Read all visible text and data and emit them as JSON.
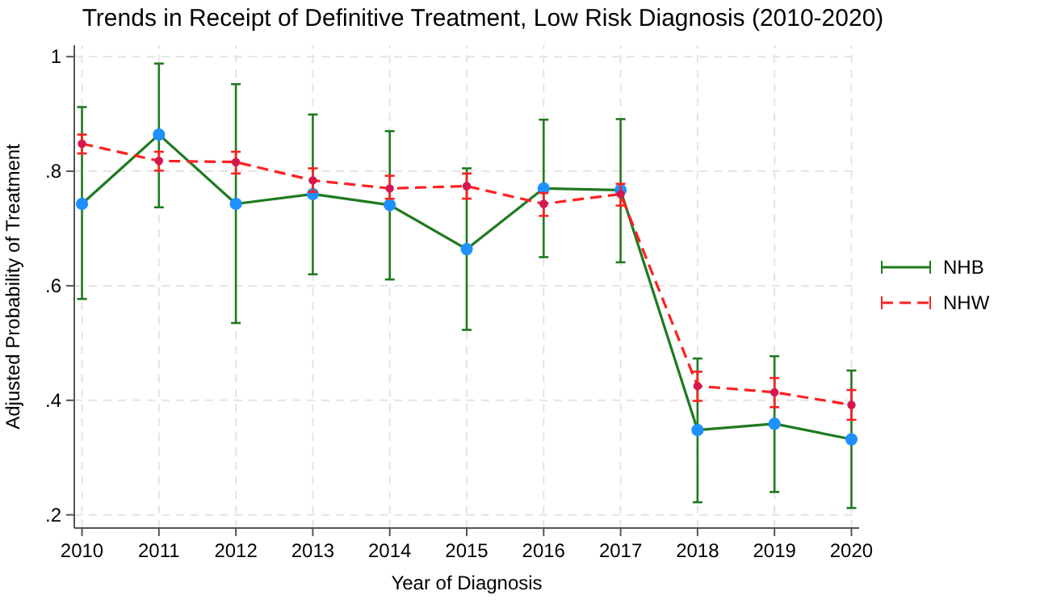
{
  "chart_data": {
    "type": "line",
    "title": "Trends in Receipt of Definitive Treatment, Low Risk Diagnosis (2010-2020)",
    "xlabel": "Year of Diagnosis",
    "ylabel": "Adjusted Probability of Treatment",
    "x": [
      2010,
      2011,
      2012,
      2013,
      2014,
      2015,
      2016,
      2017,
      2018,
      2019,
      2020
    ],
    "xlim": [
      2009.9,
      2020.1
    ],
    "xticks": [
      2010,
      2011,
      2012,
      2013,
      2014,
      2015,
      2016,
      2017,
      2018,
      2019,
      2020
    ],
    "ylim": [
      0.177,
      1.02
    ],
    "yticks": [
      {
        "value": 0.2,
        "label": ".2"
      },
      {
        "value": 0.4,
        "label": ".4"
      },
      {
        "value": 0.6,
        "label": ".6"
      },
      {
        "value": 0.8,
        "label": ".8"
      },
      {
        "value": 1,
        "label": "1"
      }
    ],
    "grid": true,
    "legend": "right",
    "marker": "circle",
    "series": [
      {
        "name": "NHB",
        "color": "#1f7a1f",
        "line_style": "solid",
        "colors": [
          "#1e90ff",
          "#1e90ff",
          "#1e90ff",
          "#1e90ff",
          "#1e90ff",
          "#1e90ff",
          "#1e90ff",
          "#1e90ff",
          "#1e90ff",
          "#1e90ff",
          "#1e90ff"
        ],
        "values": [
          0.743,
          0.864,
          0.743,
          0.76,
          0.741,
          0.664,
          0.77,
          0.767,
          0.348,
          0.359,
          0.332
        ],
        "errors": [
          [
            0.577,
            0.912
          ],
          [
            0.737,
            0.988
          ],
          [
            0.535,
            0.952
          ],
          [
            0.62,
            0.899
          ],
          [
            0.611,
            0.87
          ],
          [
            0.523,
            0.805
          ],
          [
            0.65,
            0.89
          ],
          [
            0.641,
            0.891
          ],
          [
            0.222,
            0.473
          ],
          [
            0.24,
            0.477
          ],
          [
            0.212,
            0.452
          ]
        ]
      },
      {
        "name": "NHW",
        "color": "#ff2020",
        "line_style": "dashed",
        "colors": [
          "#d6174f",
          "#d6174f",
          "#d6174f",
          "#d6174f",
          "#d6174f",
          "#d6174f",
          "#d6174f",
          "#d6174f",
          "#d6174f",
          "#d6174f",
          "#d6174f"
        ],
        "values": [
          0.848,
          0.818,
          0.816,
          0.784,
          0.77,
          0.774,
          0.743,
          0.76,
          0.425,
          0.414,
          0.392
        ],
        "errors": [
          [
            0.831,
            0.864
          ],
          [
            0.801,
            0.834
          ],
          [
            0.796,
            0.834
          ],
          [
            0.764,
            0.805
          ],
          [
            0.752,
            0.792
          ],
          [
            0.752,
            0.796
          ],
          [
            0.722,
            0.762
          ],
          [
            0.74,
            0.778
          ],
          [
            0.399,
            0.45
          ],
          [
            0.388,
            0.439
          ],
          [
            0.366,
            0.418
          ]
        ]
      }
    ]
  }
}
